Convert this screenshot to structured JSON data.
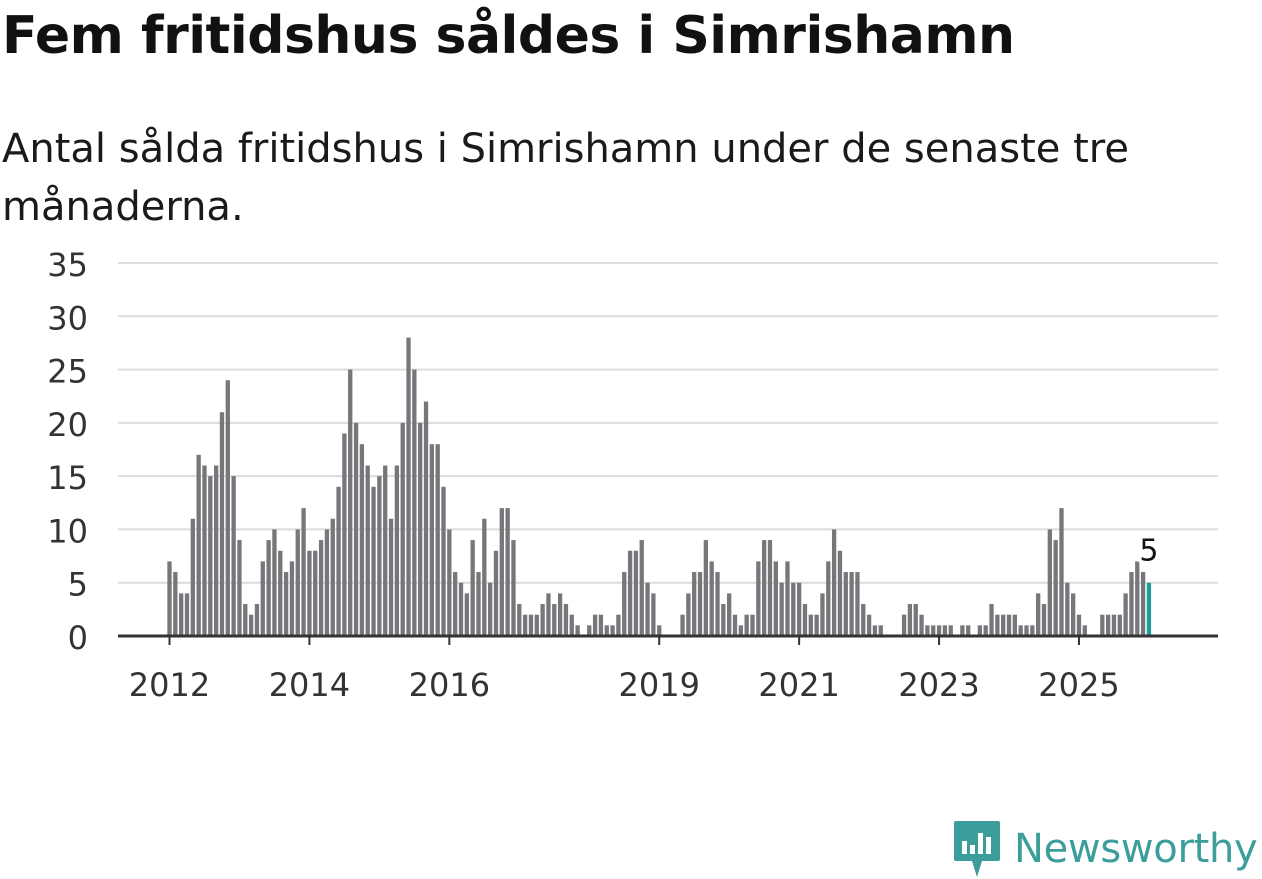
{
  "header": {
    "title": "Fem fritidshus såldes i Simrishamn",
    "subtitle": "Antal sålda fritidshus i Simrishamn under de senaste tre månaderna."
  },
  "brand": {
    "name": "Newsworthy",
    "icon": "newsworthy-logo-icon",
    "color": "#3b9e9a"
  },
  "colors": {
    "bar": "#77767a",
    "highlight": "#1f9e98",
    "grid": "#dcdcdc",
    "axis": "#333333"
  },
  "chart_data": {
    "type": "bar",
    "title": "Fem fritidshus såldes i Simrishamn",
    "subtitle": "Antal sålda fritidshus i Simrishamn under de senaste tre månaderna.",
    "xlabel": "",
    "ylabel": "",
    "ylim": [
      0,
      35
    ],
    "yticks": [
      0,
      5,
      10,
      15,
      20,
      25,
      30,
      35
    ],
    "grid": true,
    "start": "2012-01",
    "frequency": "monthly",
    "xtick_labels": [
      {
        "label": "2012",
        "index": 0
      },
      {
        "label": "2014",
        "index": 24
      },
      {
        "label": "2016",
        "index": 48
      },
      {
        "label": "2019",
        "index": 84
      },
      {
        "label": "2021",
        "index": 108
      },
      {
        "label": "2023",
        "index": 132
      },
      {
        "label": "2025",
        "index": 156
      }
    ],
    "values": [
      7,
      6,
      4,
      4,
      11,
      17,
      16,
      15,
      16,
      21,
      24,
      15,
      9,
      3,
      2,
      3,
      7,
      9,
      10,
      8,
      6,
      7,
      10,
      12,
      8,
      8,
      9,
      10,
      11,
      14,
      19,
      25,
      20,
      18,
      16,
      14,
      15,
      16,
      11,
      16,
      20,
      28,
      25,
      20,
      22,
      18,
      18,
      14,
      10,
      6,
      5,
      4,
      9,
      6,
      11,
      5,
      8,
      12,
      12,
      9,
      3,
      2,
      2,
      2,
      3,
      4,
      3,
      4,
      3,
      2,
      1,
      0,
      1,
      2,
      2,
      1,
      1,
      2,
      6,
      8,
      8,
      9,
      5,
      4,
      1,
      0,
      0,
      0,
      2,
      4,
      6,
      6,
      9,
      7,
      6,
      3,
      4,
      2,
      1,
      2,
      2,
      7,
      9,
      9,
      7,
      5,
      7,
      5,
      5,
      3,
      2,
      2,
      4,
      7,
      10,
      8,
      6,
      6,
      6,
      3,
      2,
      1,
      1,
      0,
      0,
      0,
      2,
      3,
      3,
      2,
      1,
      1,
      1,
      1,
      1,
      0,
      1,
      1,
      0,
      1,
      1,
      3,
      2,
      2,
      2,
      2,
      1,
      1,
      1,
      4,
      3,
      10,
      9,
      12,
      5,
      4,
      2,
      1,
      0,
      0,
      2,
      2,
      2,
      2,
      4,
      6,
      7,
      6,
      5
    ],
    "highlight_index": 168,
    "annotations": [
      {
        "label": "5",
        "index": 168
      }
    ]
  }
}
